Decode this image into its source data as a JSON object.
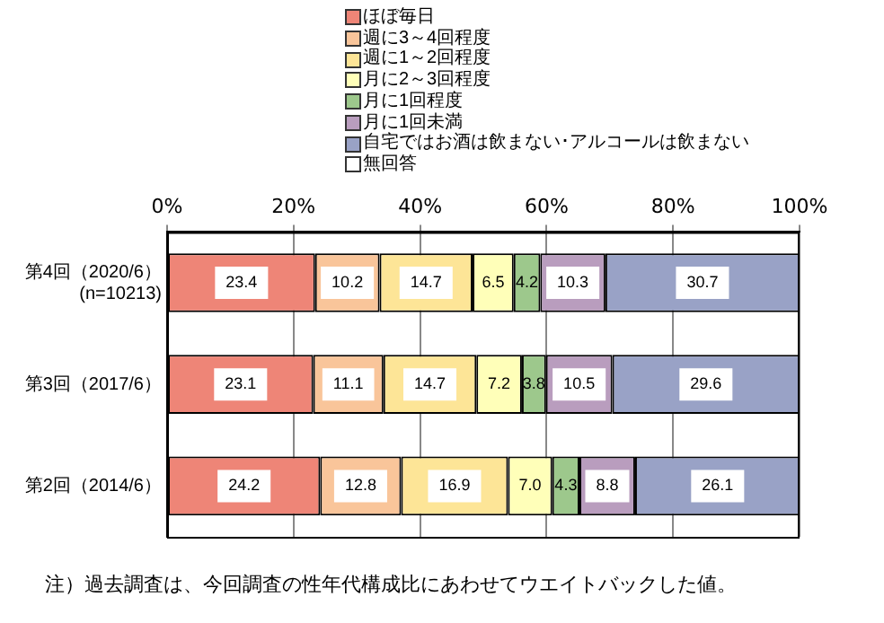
{
  "chart_data": {
    "type": "bar",
    "orientation": "horizontal",
    "stacked": true,
    "legend": "top",
    "grid": "x",
    "categories": [
      "第4回（2020/6）\n(n=10213)",
      "第3回（2017/6）",
      "第2回（2014/6）"
    ],
    "xlim": [
      0,
      100
    ],
    "xticks": [
      {
        "value": 0,
        "label": "0%"
      },
      {
        "value": 20,
        "label": "20%"
      },
      {
        "value": 40,
        "label": "40%"
      },
      {
        "value": 60,
        "label": "60%"
      },
      {
        "value": 80,
        "label": "80%"
      },
      {
        "value": 100,
        "label": "100%"
      }
    ],
    "series": [
      {
        "name": "ほぼ毎日",
        "color": "#ee8577",
        "values": [
          23.4,
          23.1,
          24.2
        ],
        "value_labels": [
          "23.4",
          "23.1",
          "24.2"
        ]
      },
      {
        "name": "週に3～4回程度",
        "color": "#f9c59a",
        "values": [
          10.2,
          11.1,
          12.8
        ],
        "value_labels": [
          "10.2",
          "11.1",
          "12.8"
        ]
      },
      {
        "name": "週に1～2回程度",
        "color": "#fde597",
        "values": [
          14.7,
          14.7,
          16.9
        ],
        "value_labels": [
          "14.7",
          "14.7",
          "16.9"
        ]
      },
      {
        "name": "月に2～3回程度",
        "color": "#ffffb9",
        "values": [
          6.5,
          7.2,
          7.0
        ],
        "value_labels": [
          "6.5",
          "7.2",
          "7.0"
        ]
      },
      {
        "name": "月に1回程度",
        "color": "#9dc88c",
        "values": [
          4.2,
          3.8,
          4.3
        ],
        "value_labels": [
          "4.2",
          "3.8",
          "4.3"
        ]
      },
      {
        "name": "月に1回未満",
        "color": "#b99dbe",
        "values": [
          10.3,
          10.5,
          8.8
        ],
        "value_labels": [
          "10.3",
          "10.5",
          "8.8"
        ]
      },
      {
        "name": "自宅ではお酒は飲まない･アルコールは飲まない",
        "color": "#99a2c6",
        "values": [
          30.7,
          29.6,
          26.1
        ],
        "value_labels": [
          "30.7",
          "29.6",
          "26.1"
        ]
      },
      {
        "name": "無回答",
        "color": "#ffffff",
        "values": [
          0,
          0,
          0
        ],
        "value_labels": [
          null,
          null,
          null
        ]
      }
    ],
    "annotations": [
      "注）過去調査は、今回調査の性年代構成比にあわせてウエイトバックした値。"
    ]
  }
}
